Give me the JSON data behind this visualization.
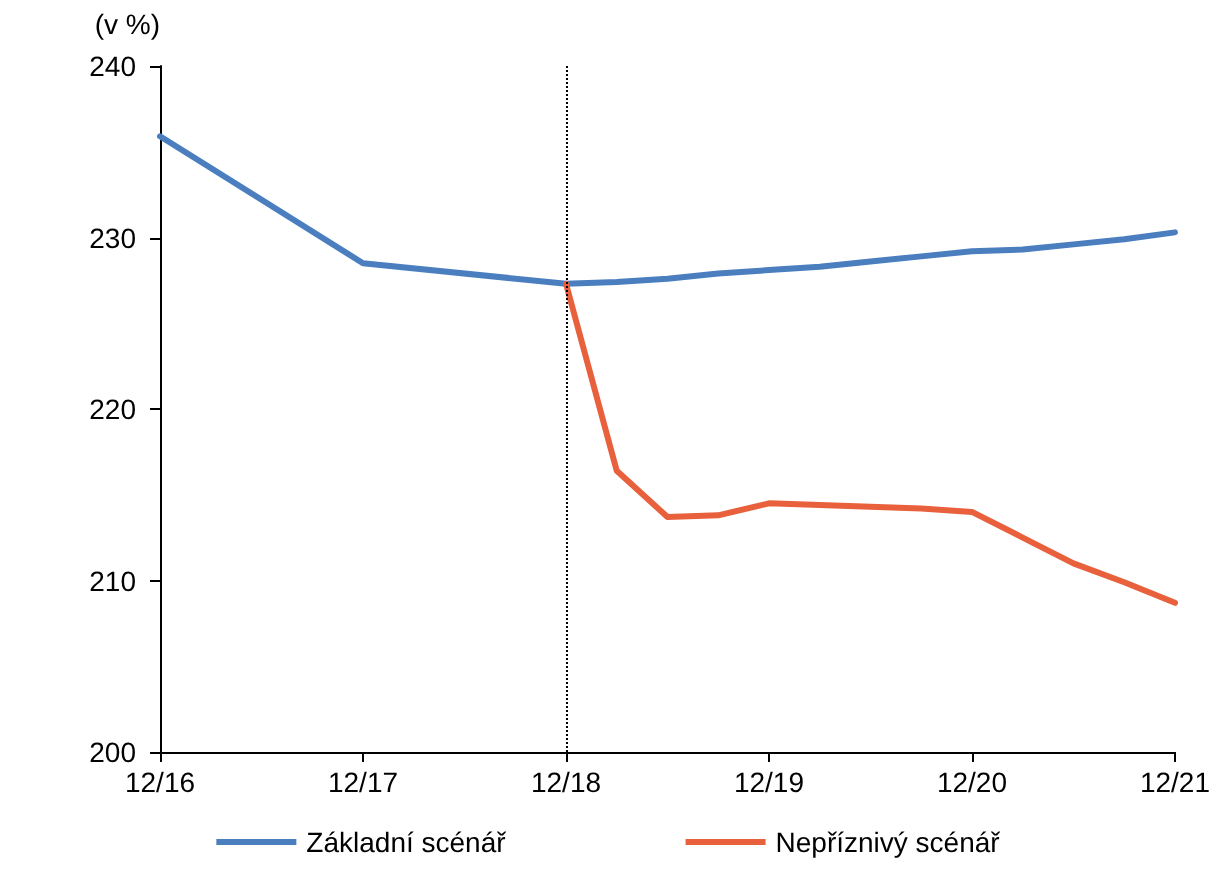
{
  "chart_data": {
    "type": "line",
    "ylabel": "(v %)",
    "xlim": [
      "2016-12",
      "2021-12"
    ],
    "xticks": [
      {
        "value": "2016-12",
        "label": "12/16"
      },
      {
        "value": "2017-12",
        "label": "12/17"
      },
      {
        "value": "2018-12",
        "label": "12/18"
      },
      {
        "value": "2019-12",
        "label": "12/19"
      },
      {
        "value": "2020-12",
        "label": "12/20"
      },
      {
        "value": "2021-12",
        "label": "12/21"
      }
    ],
    "ylim": [
      200,
      240
    ],
    "yticks": [
      200,
      210,
      220,
      230,
      240
    ],
    "series": [
      {
        "name": "Základní scénář",
        "color": "#4a7ebf",
        "x": [
          "2016-12",
          "2017-12",
          "2018-12",
          "2019-03",
          "2019-06",
          "2019-09",
          "2019-12",
          "2020-03",
          "2020-06",
          "2020-09",
          "2020-12",
          "2021-03",
          "2021-06",
          "2021-09",
          "2021-12"
        ],
        "values": [
          235.9,
          228.5,
          227.3,
          227.4,
          227.6,
          227.9,
          228.1,
          228.3,
          228.6,
          228.9,
          229.2,
          229.3,
          229.6,
          229.9,
          230.3
        ]
      },
      {
        "name": "Nepříznivý scénář",
        "color": "#e8603c",
        "x": [
          "2018-12",
          "2019-03",
          "2019-06",
          "2019-09",
          "2019-12",
          "2020-03",
          "2020-06",
          "2020-09",
          "2020-12",
          "2021-03",
          "2021-06",
          "2021-09",
          "2021-12"
        ],
        "values": [
          227.3,
          216.4,
          213.7,
          213.8,
          214.5,
          214.4,
          214.3,
          214.2,
          214.0,
          212.5,
          211.0,
          209.9,
          208.7
        ]
      }
    ],
    "ref_lines": [
      {
        "axis": "x",
        "value": "2018-12",
        "color": "#000000",
        "line_style": "dotted"
      }
    ],
    "legend": "bottom",
    "grid": false,
    "marker": "none",
    "line_style": "solid"
  }
}
